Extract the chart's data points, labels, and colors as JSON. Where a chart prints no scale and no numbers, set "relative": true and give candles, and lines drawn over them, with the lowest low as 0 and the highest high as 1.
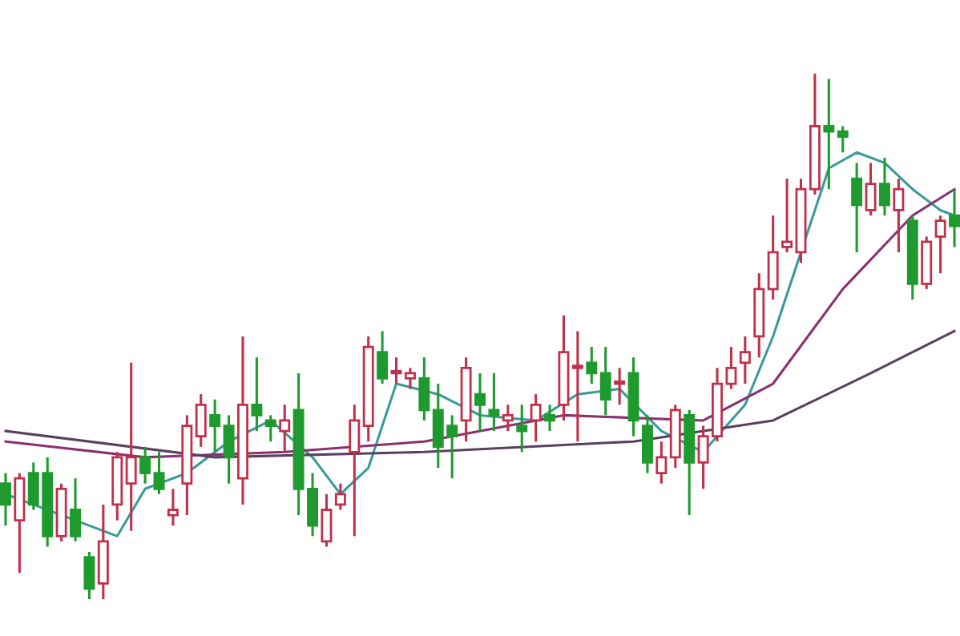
{
  "chart_data": {
    "type": "candlestick",
    "relative": true,
    "categories": [
      null,
      null,
      null,
      null,
      null,
      null,
      null,
      null,
      null,
      null,
      null,
      null,
      null,
      null,
      null,
      null,
      null,
      null,
      null,
      null,
      null,
      null,
      null,
      null,
      null,
      null,
      null,
      null,
      null,
      null,
      null,
      null,
      null,
      null,
      null,
      null,
      null,
      null,
      null,
      null,
      null,
      null,
      null,
      null,
      null,
      null,
      null,
      null,
      null,
      null,
      null,
      null,
      null,
      null,
      null,
      null,
      null,
      null,
      null,
      null,
      null,
      null,
      null,
      null,
      null,
      null,
      null,
      null,
      null
    ],
    "ohlc": [
      [
        0.22,
        0.24,
        0.14,
        0.18
      ],
      [
        0.15,
        0.24,
        0.05,
        0.23
      ],
      [
        0.24,
        0.26,
        0.17,
        0.18
      ],
      [
        0.24,
        0.27,
        0.1,
        0.12
      ],
      [
        0.12,
        0.22,
        0.11,
        0.21
      ],
      [
        0.17,
        0.23,
        0.11,
        0.12
      ],
      [
        0.08,
        0.09,
        0.0,
        0.02
      ],
      [
        0.03,
        0.18,
        0.0,
        0.11
      ],
      [
        0.18,
        0.28,
        0.15,
        0.27
      ],
      [
        0.22,
        0.45,
        0.13,
        0.27
      ],
      [
        0.27,
        0.29,
        0.22,
        0.24
      ],
      [
        0.24,
        0.28,
        0.2,
        0.21
      ],
      [
        0.16,
        0.21,
        0.14,
        0.17
      ],
      [
        0.22,
        0.35,
        0.16,
        0.33
      ],
      [
        0.31,
        0.39,
        0.29,
        0.37
      ],
      [
        0.35,
        0.38,
        0.28,
        0.33
      ],
      [
        0.33,
        0.35,
        0.22,
        0.27
      ],
      [
        0.23,
        0.5,
        0.18,
        0.37
      ],
      [
        0.37,
        0.46,
        0.32,
        0.35
      ],
      [
        0.34,
        0.35,
        0.3,
        0.33
      ],
      [
        0.32,
        0.37,
        0.28,
        0.34
      ],
      [
        0.36,
        0.43,
        0.16,
        0.21
      ],
      [
        0.21,
        0.24,
        0.12,
        0.14
      ],
      [
        0.11,
        0.2,
        0.1,
        0.17
      ],
      [
        0.18,
        0.22,
        0.17,
        0.2
      ],
      [
        0.28,
        0.37,
        0.12,
        0.34
      ],
      [
        0.33,
        0.5,
        0.3,
        0.48
      ],
      [
        0.47,
        0.51,
        0.41,
        0.42
      ],
      [
        0.43,
        0.46,
        0.41,
        0.43
      ],
      [
        0.42,
        0.44,
        0.4,
        0.43
      ],
      [
        0.42,
        0.46,
        0.34,
        0.36
      ],
      [
        0.36,
        0.41,
        0.25,
        0.29
      ],
      [
        0.33,
        0.35,
        0.23,
        0.31
      ],
      [
        0.34,
        0.46,
        0.3,
        0.44
      ],
      [
        0.39,
        0.43,
        0.32,
        0.37
      ],
      [
        0.36,
        0.43,
        0.32,
        0.35
      ],
      [
        0.34,
        0.37,
        0.32,
        0.35
      ],
      [
        0.33,
        0.37,
        0.28,
        0.32
      ],
      [
        0.34,
        0.39,
        0.3,
        0.37
      ],
      [
        0.35,
        0.37,
        0.32,
        0.34
      ],
      [
        0.37,
        0.54,
        0.34,
        0.47
      ],
      [
        0.44,
        0.51,
        0.3,
        0.44
      ],
      [
        0.45,
        0.48,
        0.41,
        0.43
      ],
      [
        0.43,
        0.48,
        0.35,
        0.38
      ],
      [
        0.41,
        0.44,
        0.37,
        0.41
      ],
      [
        0.43,
        0.46,
        0.31,
        0.34
      ],
      [
        0.33,
        0.35,
        0.24,
        0.26
      ],
      [
        0.24,
        0.3,
        0.22,
        0.27
      ],
      [
        0.27,
        0.37,
        0.25,
        0.36
      ],
      [
        0.35,
        0.36,
        0.16,
        0.26
      ],
      [
        0.26,
        0.33,
        0.21,
        0.31
      ],
      [
        0.31,
        0.44,
        0.3,
        0.41
      ],
      [
        0.41,
        0.48,
        0.4,
        0.44
      ],
      [
        0.45,
        0.5,
        0.41,
        0.47
      ],
      [
        0.5,
        0.62,
        0.46,
        0.59
      ],
      [
        0.59,
        0.73,
        0.57,
        0.66
      ],
      [
        0.67,
        0.8,
        0.66,
        0.68
      ],
      [
        0.66,
        0.8,
        0.64,
        0.78
      ],
      [
        0.78,
        1.0,
        0.77,
        0.9
      ],
      [
        0.9,
        0.99,
        0.78,
        0.89
      ],
      [
        0.89,
        0.9,
        0.85,
        0.88
      ],
      [
        0.8,
        0.83,
        0.66,
        0.75
      ],
      [
        0.74,
        0.83,
        0.73,
        0.79
      ],
      [
        0.79,
        0.84,
        0.73,
        0.75
      ],
      [
        0.74,
        0.8,
        0.66,
        0.78
      ],
      [
        0.72,
        0.73,
        0.57,
        0.6
      ],
      [
        0.6,
        0.69,
        0.59,
        0.68
      ],
      [
        0.69,
        0.73,
        0.62,
        0.72
      ],
      [
        0.73,
        0.78,
        0.67,
        0.71
      ]
    ],
    "series": [
      {
        "type": "line",
        "color": "#3a9a9a",
        "values": [
          0.2,
          null,
          null,
          null,
          null,
          0.15,
          null,
          null,
          0.12,
          null,
          0.21,
          null,
          null,
          0.24,
          null,
          null,
          0.3,
          null,
          null,
          0.34,
          null,
          null,
          0.27,
          null,
          0.2,
          null,
          0.25,
          null,
          0.41,
          null,
          null,
          0.39,
          null,
          null,
          0.35,
          null,
          null,
          null,
          0.34,
          null,
          null,
          0.39,
          null,
          null,
          0.4,
          null,
          null,
          0.32,
          null,
          null,
          0.28,
          null,
          null,
          0.37,
          null,
          0.5,
          null,
          0.66,
          null,
          0.82,
          null,
          0.85,
          null,
          0.83,
          null,
          0.78,
          null,
          0.74,
          0.73
        ]
      },
      {
        "type": "line",
        "color": "#8a3070",
        "values": [
          0.3,
          null,
          null,
          null,
          null,
          null,
          null,
          null,
          null,
          null,
          0.27,
          null,
          null,
          null,
          null,
          null,
          null,
          null,
          null,
          null,
          0.28,
          null,
          null,
          null,
          null,
          null,
          null,
          null,
          null,
          null,
          0.3,
          null,
          null,
          null,
          null,
          null,
          null,
          null,
          null,
          null,
          0.35,
          null,
          null,
          null,
          null,
          null,
          null,
          null,
          null,
          null,
          0.34,
          null,
          null,
          null,
          null,
          0.41,
          null,
          null,
          null,
          null,
          0.59,
          null,
          null,
          null,
          null,
          0.73,
          null,
          null,
          0.78
        ]
      },
      {
        "type": "line",
        "color": "#5a4060",
        "values": [
          0.32,
          null,
          null,
          null,
          null,
          null,
          null,
          null,
          null,
          null,
          null,
          null,
          null,
          null,
          null,
          0.27,
          null,
          null,
          null,
          null,
          null,
          null,
          null,
          null,
          null,
          null,
          null,
          null,
          null,
          null,
          0.28,
          null,
          null,
          null,
          null,
          null,
          null,
          null,
          null,
          null,
          null,
          null,
          null,
          null,
          null,
          0.3,
          null,
          null,
          null,
          null,
          null,
          null,
          null,
          null,
          null,
          0.34,
          null,
          null,
          null,
          null,
          null,
          null,
          0.43,
          null,
          null,
          null,
          null,
          null,
          0.51
        ]
      }
    ]
  }
}
